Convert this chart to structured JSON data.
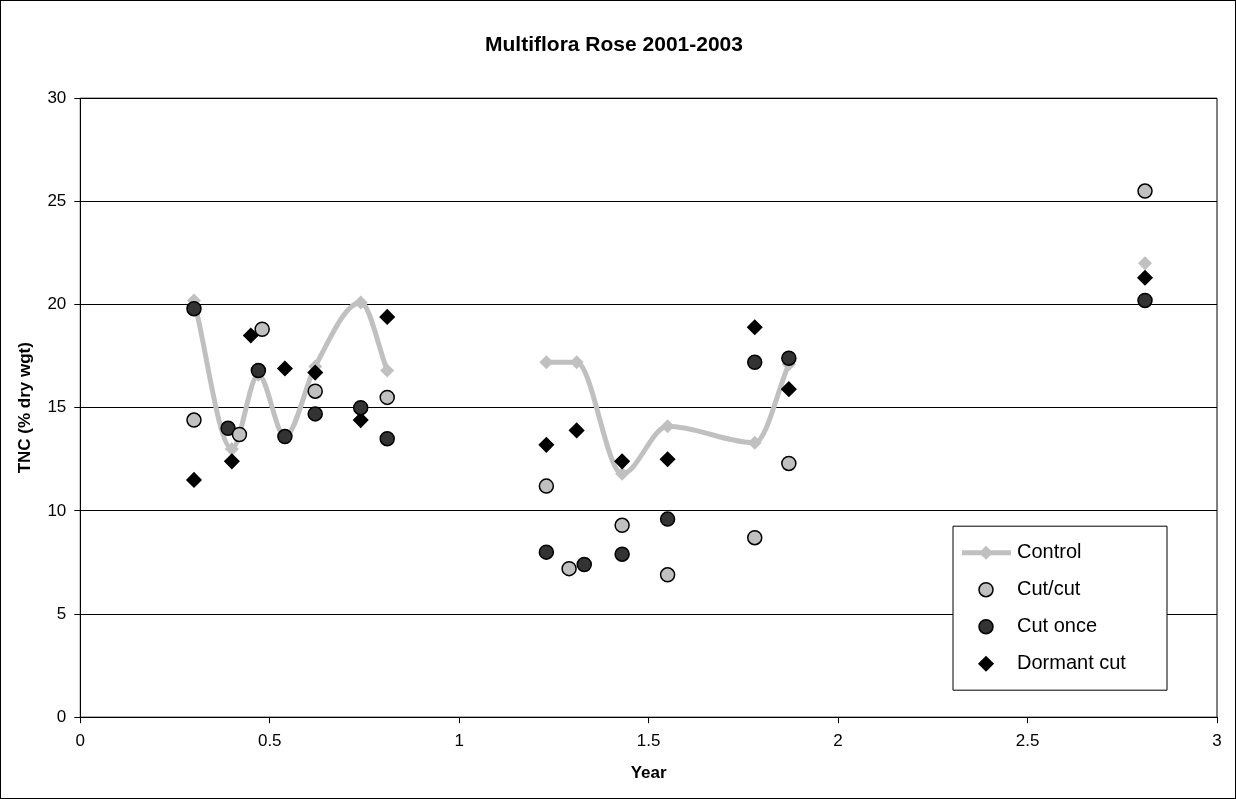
{
  "chart_data": {
    "type": "scatter",
    "title": "Multiflora Rose 2001-2003",
    "xlabel": "Year",
    "ylabel": "TNC (% dry wgt)",
    "xlim": [
      0,
      3
    ],
    "xticks": [
      0,
      0.5,
      1,
      1.5,
      2,
      2.5,
      3
    ],
    "ylim": [
      0,
      30
    ],
    "yticks": [
      0,
      5,
      10,
      15,
      20,
      25,
      30
    ],
    "grid": "y",
    "legend": "bottom right",
    "series": [
      {
        "name": "Control",
        "type": "line",
        "color": "#c0c0c0",
        "marker": "diamond",
        "x": [
          0.3,
          0.4,
          0.47,
          0.54,
          0.62,
          0.74,
          0.81,
          1.0,
          1.23,
          1.31,
          1.43,
          1.55,
          1.78,
          1.87,
          2.5,
          2.81
        ],
        "values": [
          20.2,
          13.0,
          16.6,
          13.6,
          17.0,
          20.1,
          16.8,
          null,
          17.2,
          17.2,
          11.8,
          14.1,
          13.3,
          17.1,
          null,
          22.0
        ]
      },
      {
        "name": "Cut/cut",
        "color": "#c0c0c0",
        "marker": "circle",
        "x": [
          0.3,
          0.42,
          0.48,
          0.62,
          0.81,
          1.23,
          1.29,
          1.43,
          1.55,
          1.78,
          1.87,
          2.81
        ],
        "values": [
          14.4,
          13.7,
          18.8,
          15.8,
          15.5,
          11.2,
          7.2,
          9.3,
          6.9,
          8.7,
          12.3,
          25.5
        ]
      },
      {
        "name": "Cut once",
        "color": "#333333",
        "marker": "circle",
        "x": [
          0.3,
          0.39,
          0.47,
          0.54,
          0.62,
          0.74,
          0.81,
          1.23,
          1.33,
          1.43,
          1.55,
          1.78,
          1.87,
          2.81
        ],
        "values": [
          19.8,
          14.0,
          16.8,
          13.6,
          14.7,
          15.0,
          13.5,
          8.0,
          7.4,
          7.9,
          9.6,
          17.2,
          17.4,
          20.2
        ]
      },
      {
        "name": "Dormant cut",
        "color": "#000000",
        "marker": "diamond",
        "x": [
          0.3,
          0.4,
          0.45,
          0.54,
          0.62,
          0.74,
          0.81,
          1.23,
          1.31,
          1.43,
          1.55,
          1.78,
          1.87,
          2.81
        ],
        "values": [
          11.5,
          12.4,
          18.5,
          16.9,
          16.7,
          14.4,
          19.4,
          13.2,
          13.9,
          12.4,
          12.5,
          18.9,
          15.9,
          21.3
        ]
      }
    ]
  }
}
